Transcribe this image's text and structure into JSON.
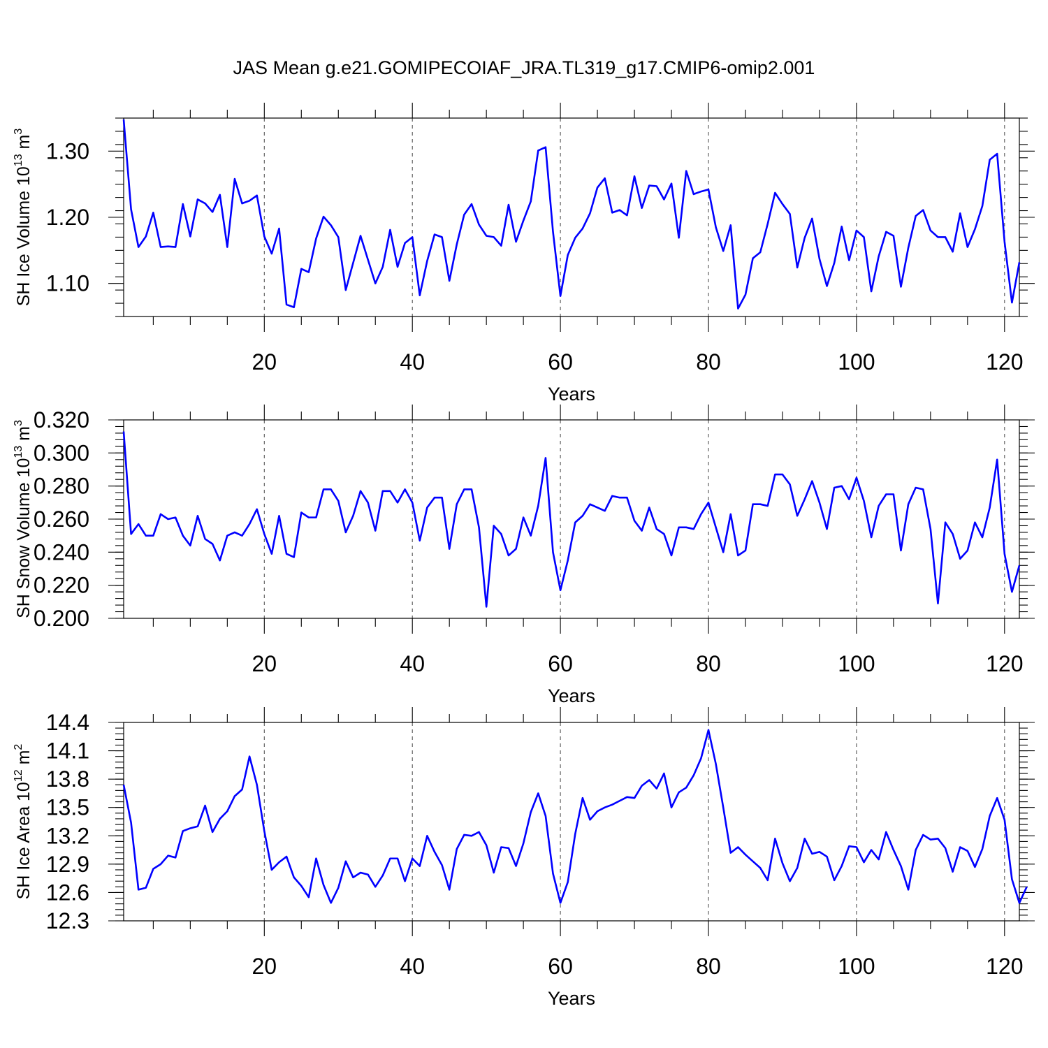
{
  "title": "JAS Mean g.e21.GOMIPECOIAF_JRA.TL319_g17.CMIP6-omip2.001",
  "colors": {
    "line": "#0000ff",
    "axis": "#000000",
    "grid": "#555555"
  },
  "chart_data": [
    {
      "type": "line",
      "name": "ice-volume",
      "ylabel_main": "SH Ice Volume 10",
      "ylabel_exp": "13",
      "ylabel_unit": " m",
      "ylabel_unit_exp": "3",
      "xlabel": "Years",
      "xlim": [
        1,
        122
      ],
      "ylim": [
        1.05,
        1.35
      ],
      "xticks": [
        20,
        40,
        60,
        80,
        100,
        120
      ],
      "xtick_labels": [
        "20",
        "40",
        "60",
        "80",
        "100",
        "120"
      ],
      "yticks": [
        1.1,
        1.2,
        1.3
      ],
      "ytick_labels": [
        "1.10",
        "1.20",
        "1.30"
      ],
      "yminor_step": 0.02,
      "grid_x": [
        20,
        40,
        60,
        80,
        100,
        120
      ],
      "series": [
        {
          "name": "SH Ice Volume",
          "x_start": 1,
          "values": [
            1.348,
            1.212,
            1.155,
            1.171,
            1.207,
            1.155,
            1.156,
            1.155,
            1.22,
            1.171,
            1.227,
            1.221,
            1.208,
            1.234,
            1.155,
            1.258,
            1.221,
            1.225,
            1.233,
            1.171,
            1.145,
            1.183,
            1.068,
            1.064,
            1.122,
            1.117,
            1.168,
            1.201,
            1.188,
            1.17,
            1.09,
            1.131,
            1.172,
            1.136,
            1.1,
            1.125,
            1.181,
            1.125,
            1.161,
            1.17,
            1.082,
            1.134,
            1.174,
            1.17,
            1.104,
            1.159,
            1.204,
            1.22,
            1.189,
            1.172,
            1.17,
            1.157,
            1.219,
            1.163,
            1.195,
            1.224,
            1.301,
            1.306,
            1.178,
            1.081,
            1.143,
            1.169,
            1.183,
            1.206,
            1.245,
            1.259,
            1.207,
            1.211,
            1.203,
            1.262,
            1.214,
            1.248,
            1.247,
            1.227,
            1.251,
            1.169,
            1.27,
            1.235,
            1.239,
            1.242,
            1.185,
            1.149,
            1.188,
            1.062,
            1.083,
            1.138,
            1.147,
            1.19,
            1.237,
            1.22,
            1.205,
            1.124,
            1.169,
            1.198,
            1.137,
            1.096,
            1.131,
            1.186,
            1.135,
            1.18,
            1.17,
            1.088,
            1.141,
            1.178,
            1.172,
            1.095,
            1.154,
            1.202,
            1.211,
            1.18,
            1.17,
            1.17,
            1.148,
            1.206,
            1.155,
            1.182,
            1.217,
            1.287,
            1.296,
            1.163,
            1.071,
            1.132
          ]
        }
      ]
    },
    {
      "type": "line",
      "name": "snow-volume",
      "ylabel_main": "SH Snow Volume 10",
      "ylabel_exp": "13",
      "ylabel_unit": " m",
      "ylabel_unit_exp": "3",
      "xlabel": "Years",
      "xlim": [
        1,
        122
      ],
      "ylim": [
        0.2,
        0.32
      ],
      "xticks": [
        20,
        40,
        60,
        80,
        100,
        120
      ],
      "xtick_labels": [
        "20",
        "40",
        "60",
        "80",
        "100",
        "120"
      ],
      "yticks": [
        0.2,
        0.22,
        0.24,
        0.26,
        0.28,
        0.3,
        0.32
      ],
      "ytick_labels": [
        "0.200",
        "0.220",
        "0.240",
        "0.260",
        "0.280",
        "0.300",
        "0.320"
      ],
      "yminor_step": 0.004,
      "grid_x": [
        20,
        40,
        60,
        80,
        100,
        120
      ],
      "series": [
        {
          "name": "SH Snow Volume",
          "x_start": 1,
          "values": [
            0.313,
            0.251,
            0.257,
            0.25,
            0.25,
            0.263,
            0.26,
            0.261,
            0.25,
            0.244,
            0.262,
            0.248,
            0.245,
            0.235,
            0.25,
            0.252,
            0.25,
            0.257,
            0.266,
            0.251,
            0.239,
            0.262,
            0.239,
            0.237,
            0.264,
            0.261,
            0.261,
            0.278,
            0.278,
            0.271,
            0.252,
            0.262,
            0.277,
            0.27,
            0.253,
            0.277,
            0.277,
            0.27,
            0.278,
            0.27,
            0.247,
            0.267,
            0.273,
            0.273,
            0.242,
            0.269,
            0.278,
            0.278,
            0.255,
            0.207,
            0.256,
            0.251,
            0.238,
            0.242,
            0.261,
            0.25,
            0.268,
            0.297,
            0.24,
            0.217,
            0.235,
            0.258,
            0.262,
            0.269,
            0.267,
            0.265,
            0.274,
            0.273,
            0.273,
            0.259,
            0.253,
            0.267,
            0.254,
            0.251,
            0.238,
            0.255,
            0.255,
            0.254,
            0.263,
            0.27,
            0.255,
            0.24,
            0.263,
            0.238,
            0.241,
            0.269,
            0.269,
            0.268,
            0.287,
            0.287,
            0.281,
            0.262,
            0.272,
            0.283,
            0.27,
            0.254,
            0.279,
            0.28,
            0.272,
            0.285,
            0.271,
            0.249,
            0.268,
            0.275,
            0.275,
            0.241,
            0.269,
            0.279,
            0.278,
            0.254,
            0.209,
            0.258,
            0.251,
            0.236,
            0.241,
            0.258,
            0.249,
            0.267,
            0.296,
            0.239,
            0.216,
            0.232
          ]
        }
      ]
    },
    {
      "type": "line",
      "name": "ice-area",
      "ylabel_main": "SH Ice Area 10",
      "ylabel_exp": "12",
      "ylabel_unit": " m",
      "ylabel_unit_exp": "2",
      "xlabel": "Years",
      "xlim": [
        1,
        122
      ],
      "ylim": [
        12.3,
        14.4
      ],
      "xticks": [
        20,
        40,
        60,
        80,
        100,
        120
      ],
      "xtick_labels": [
        "20",
        "40",
        "60",
        "80",
        "100",
        "120"
      ],
      "yticks": [
        12.3,
        12.6,
        12.9,
        13.2,
        13.5,
        13.8,
        14.1,
        14.4
      ],
      "ytick_labels": [
        "12.3",
        "12.6",
        "12.9",
        "13.2",
        "13.5",
        "13.8",
        "14.1",
        "14.4"
      ],
      "yminor_step": 0.06,
      "grid_x": [
        20,
        40,
        60,
        80,
        100,
        120
      ],
      "series": [
        {
          "name": "SH Ice Area",
          "x_start": 1,
          "values": [
            13.74,
            13.34,
            12.63,
            12.65,
            12.85,
            12.9,
            12.99,
            12.97,
            13.25,
            13.28,
            13.3,
            13.52,
            13.24,
            13.38,
            13.46,
            13.62,
            13.69,
            14.04,
            13.74,
            13.25,
            12.84,
            12.92,
            12.98,
            12.76,
            12.67,
            12.55,
            12.96,
            12.68,
            12.49,
            12.65,
            12.93,
            12.76,
            12.81,
            12.79,
            12.66,
            12.78,
            12.96,
            12.96,
            12.72,
            12.96,
            12.88,
            13.2,
            13.03,
            12.89,
            12.63,
            13.06,
            13.21,
            13.2,
            13.24,
            13.1,
            12.81,
            13.08,
            13.07,
            12.88,
            13.12,
            13.45,
            13.65,
            13.41,
            12.8,
            12.49,
            12.71,
            13.22,
            13.6,
            13.37,
            13.46,
            13.5,
            13.53,
            13.57,
            13.61,
            13.6,
            13.73,
            13.79,
            13.7,
            13.86,
            13.5,
            13.66,
            13.71,
            13.84,
            14.02,
            14.32,
            13.96,
            13.5,
            13.02,
            13.08,
            13.0,
            12.93,
            12.86,
            12.73,
            13.17,
            12.91,
            12.72,
            12.86,
            13.17,
            13.01,
            13.03,
            12.98,
            12.73,
            12.88,
            13.09,
            13.08,
            12.92,
            13.05,
            12.95,
            13.24,
            13.05,
            12.88,
            12.63,
            13.05,
            13.21,
            13.16,
            13.17,
            13.07,
            12.82,
            13.08,
            13.04,
            12.87,
            13.06,
            13.41,
            13.6,
            13.37,
            12.74,
            12.49,
            12.66
          ]
        }
      ]
    }
  ]
}
